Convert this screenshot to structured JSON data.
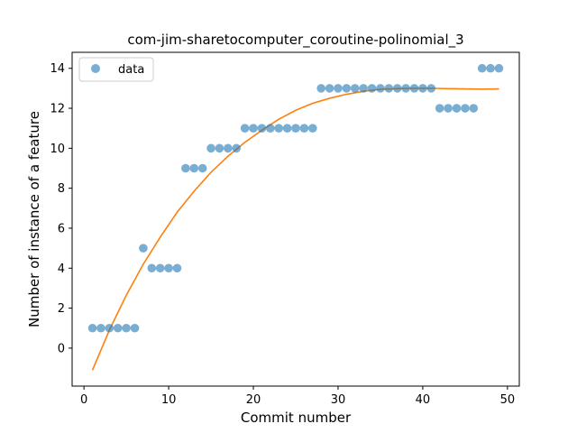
{
  "chart_data": {
    "type": "scatter",
    "title": "com-jim-sharetocomputer_coroutine-polinomial_3",
    "xlabel": "Commit number",
    "ylabel": "Number of instance of a feature",
    "xlim": [
      -1.4,
      51.4
    ],
    "ylim": [
      -1.9,
      14.8
    ],
    "xticks": [
      0,
      10,
      20,
      30,
      40,
      50
    ],
    "yticks": [
      0,
      2,
      4,
      6,
      8,
      10,
      12,
      14
    ],
    "legend": {
      "placement": "top-left",
      "entries": [
        "data"
      ]
    },
    "grid": false,
    "series": [
      {
        "name": "data",
        "kind": "scatter",
        "color": "#1f77b4",
        "x": [
          1,
          2,
          3,
          4,
          5,
          6,
          7,
          8,
          9,
          10,
          11,
          12,
          13,
          14,
          15,
          16,
          17,
          18,
          19,
          20,
          21,
          22,
          23,
          24,
          25,
          26,
          27,
          28,
          29,
          30,
          31,
          32,
          33,
          34,
          35,
          36,
          37,
          38,
          39,
          40,
          41,
          42,
          43,
          44,
          45,
          46,
          47,
          48,
          49
        ],
        "y": [
          1,
          1,
          1,
          1,
          1,
          1,
          5,
          4,
          4,
          4,
          4,
          9,
          9,
          9,
          10,
          10,
          10,
          10,
          11,
          11,
          11,
          11,
          11,
          11,
          11,
          11,
          11,
          13,
          13,
          13,
          13,
          13,
          13,
          13,
          13,
          13,
          13,
          13,
          13,
          13,
          13,
          12,
          12,
          12,
          12,
          12,
          14,
          14,
          14
        ]
      },
      {
        "kind": "line",
        "color": "#ff7f0e",
        "x": [
          1,
          3,
          5,
          7,
          9,
          11,
          13,
          15,
          17,
          19,
          21,
          23,
          25,
          27,
          29,
          31,
          33,
          35,
          37,
          39,
          41,
          43,
          45,
          47,
          49
        ],
        "y": [
          -1.1,
          0.9,
          2.65,
          4.2,
          5.55,
          6.8,
          7.85,
          8.8,
          9.6,
          10.3,
          10.9,
          11.45,
          11.9,
          12.25,
          12.5,
          12.7,
          12.85,
          12.95,
          12.98,
          13.0,
          13.0,
          12.98,
          12.97,
          12.96,
          12.97
        ]
      }
    ]
  }
}
